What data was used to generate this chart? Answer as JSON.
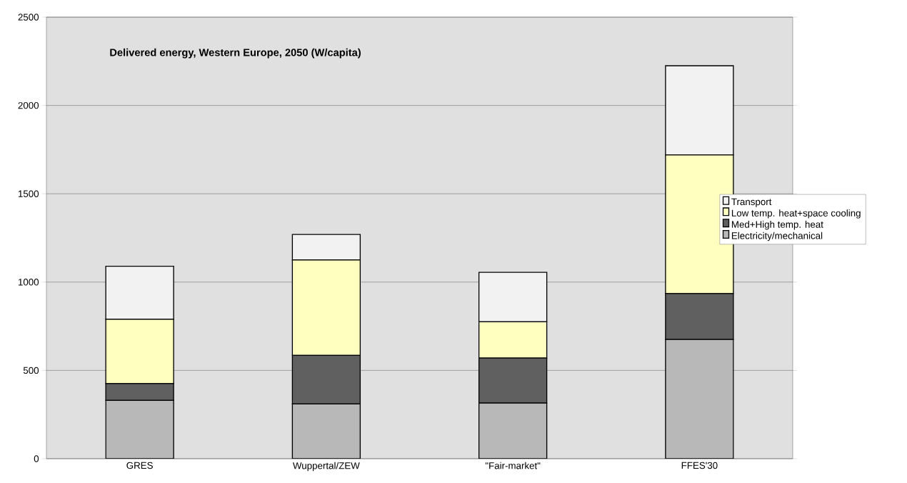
{
  "chart_data": {
    "type": "bar",
    "title": "Delivered energy, Western Europe, 2050 (W/capita)",
    "stacked": true,
    "categories": [
      "GRES",
      "Wuppertal/ZEW",
      "\"Fair-market\"",
      "FFES'30"
    ],
    "series": [
      {
        "name": "Electricity/mechanical",
        "color": "#b8b8b8",
        "values": [
          330,
          310,
          315,
          675
        ]
      },
      {
        "name": "Med+High temp. heat",
        "color": "#606060",
        "values": [
          95,
          275,
          255,
          260
        ]
      },
      {
        "name": "Low temp. heat+space cooling",
        "color": "#ffffc0",
        "values": [
          365,
          540,
          205,
          785
        ]
      },
      {
        "name": "Transport",
        "color": "#f2f2f2",
        "values": [
          300,
          145,
          280,
          505
        ]
      }
    ],
    "ylim": [
      0,
      2500
    ],
    "yticks": [
      0,
      500,
      1000,
      1500,
      2000,
      2500
    ],
    "grid": "y",
    "legend": "right"
  }
}
